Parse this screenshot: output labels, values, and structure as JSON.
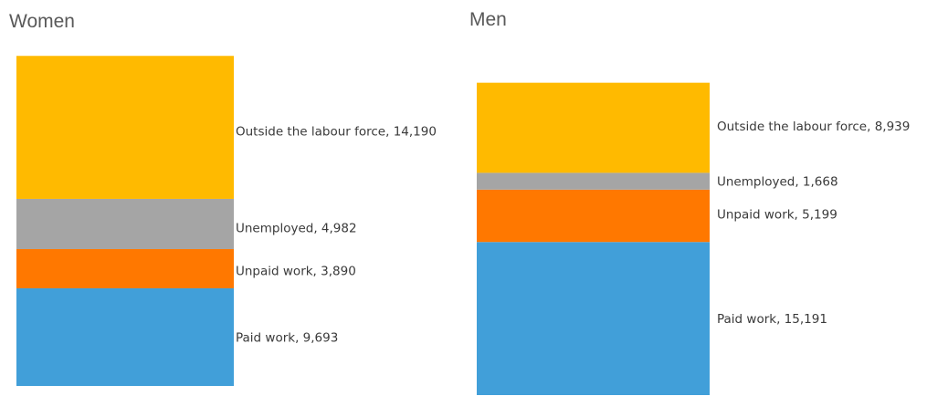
{
  "chart_data": [
    {
      "type": "bar",
      "stacked": true,
      "title": "Women",
      "categories": [
        "Women"
      ],
      "series": [
        {
          "name": "Paid work",
          "values": [
            9693
          ],
          "color": "#419FD9"
        },
        {
          "name": "Unpaid work",
          "values": [
            3890
          ],
          "color": "#FF7800"
        },
        {
          "name": "Unemployed",
          "values": [
            4982
          ],
          "color": "#A5A5A5"
        },
        {
          "name": "Outside the labour force",
          "values": [
            14190
          ],
          "color": "#FFBA00"
        }
      ],
      "labels": [
        "Paid work, 9,693",
        "Unpaid work, 3,890",
        "Unemployed, 4,982",
        "Outside the labour force, 14,190"
      ]
    },
    {
      "type": "bar",
      "stacked": true,
      "title": "Men",
      "categories": [
        "Men"
      ],
      "series": [
        {
          "name": "Paid work",
          "values": [
            15191
          ],
          "color": "#419FD9"
        },
        {
          "name": "Unpaid work",
          "values": [
            5199
          ],
          "color": "#FF7800"
        },
        {
          "name": "Unemployed",
          "values": [
            1668
          ],
          "color": "#A5A5A5"
        },
        {
          "name": "Outside the labour force",
          "values": [
            8939
          ],
          "color": "#FFBA00"
        }
      ],
      "labels": [
        "Paid work, 15,191",
        "Unpaid work, 5,199",
        "Unemployed, 1,668",
        "Outside the labour force, 8,939"
      ]
    }
  ]
}
